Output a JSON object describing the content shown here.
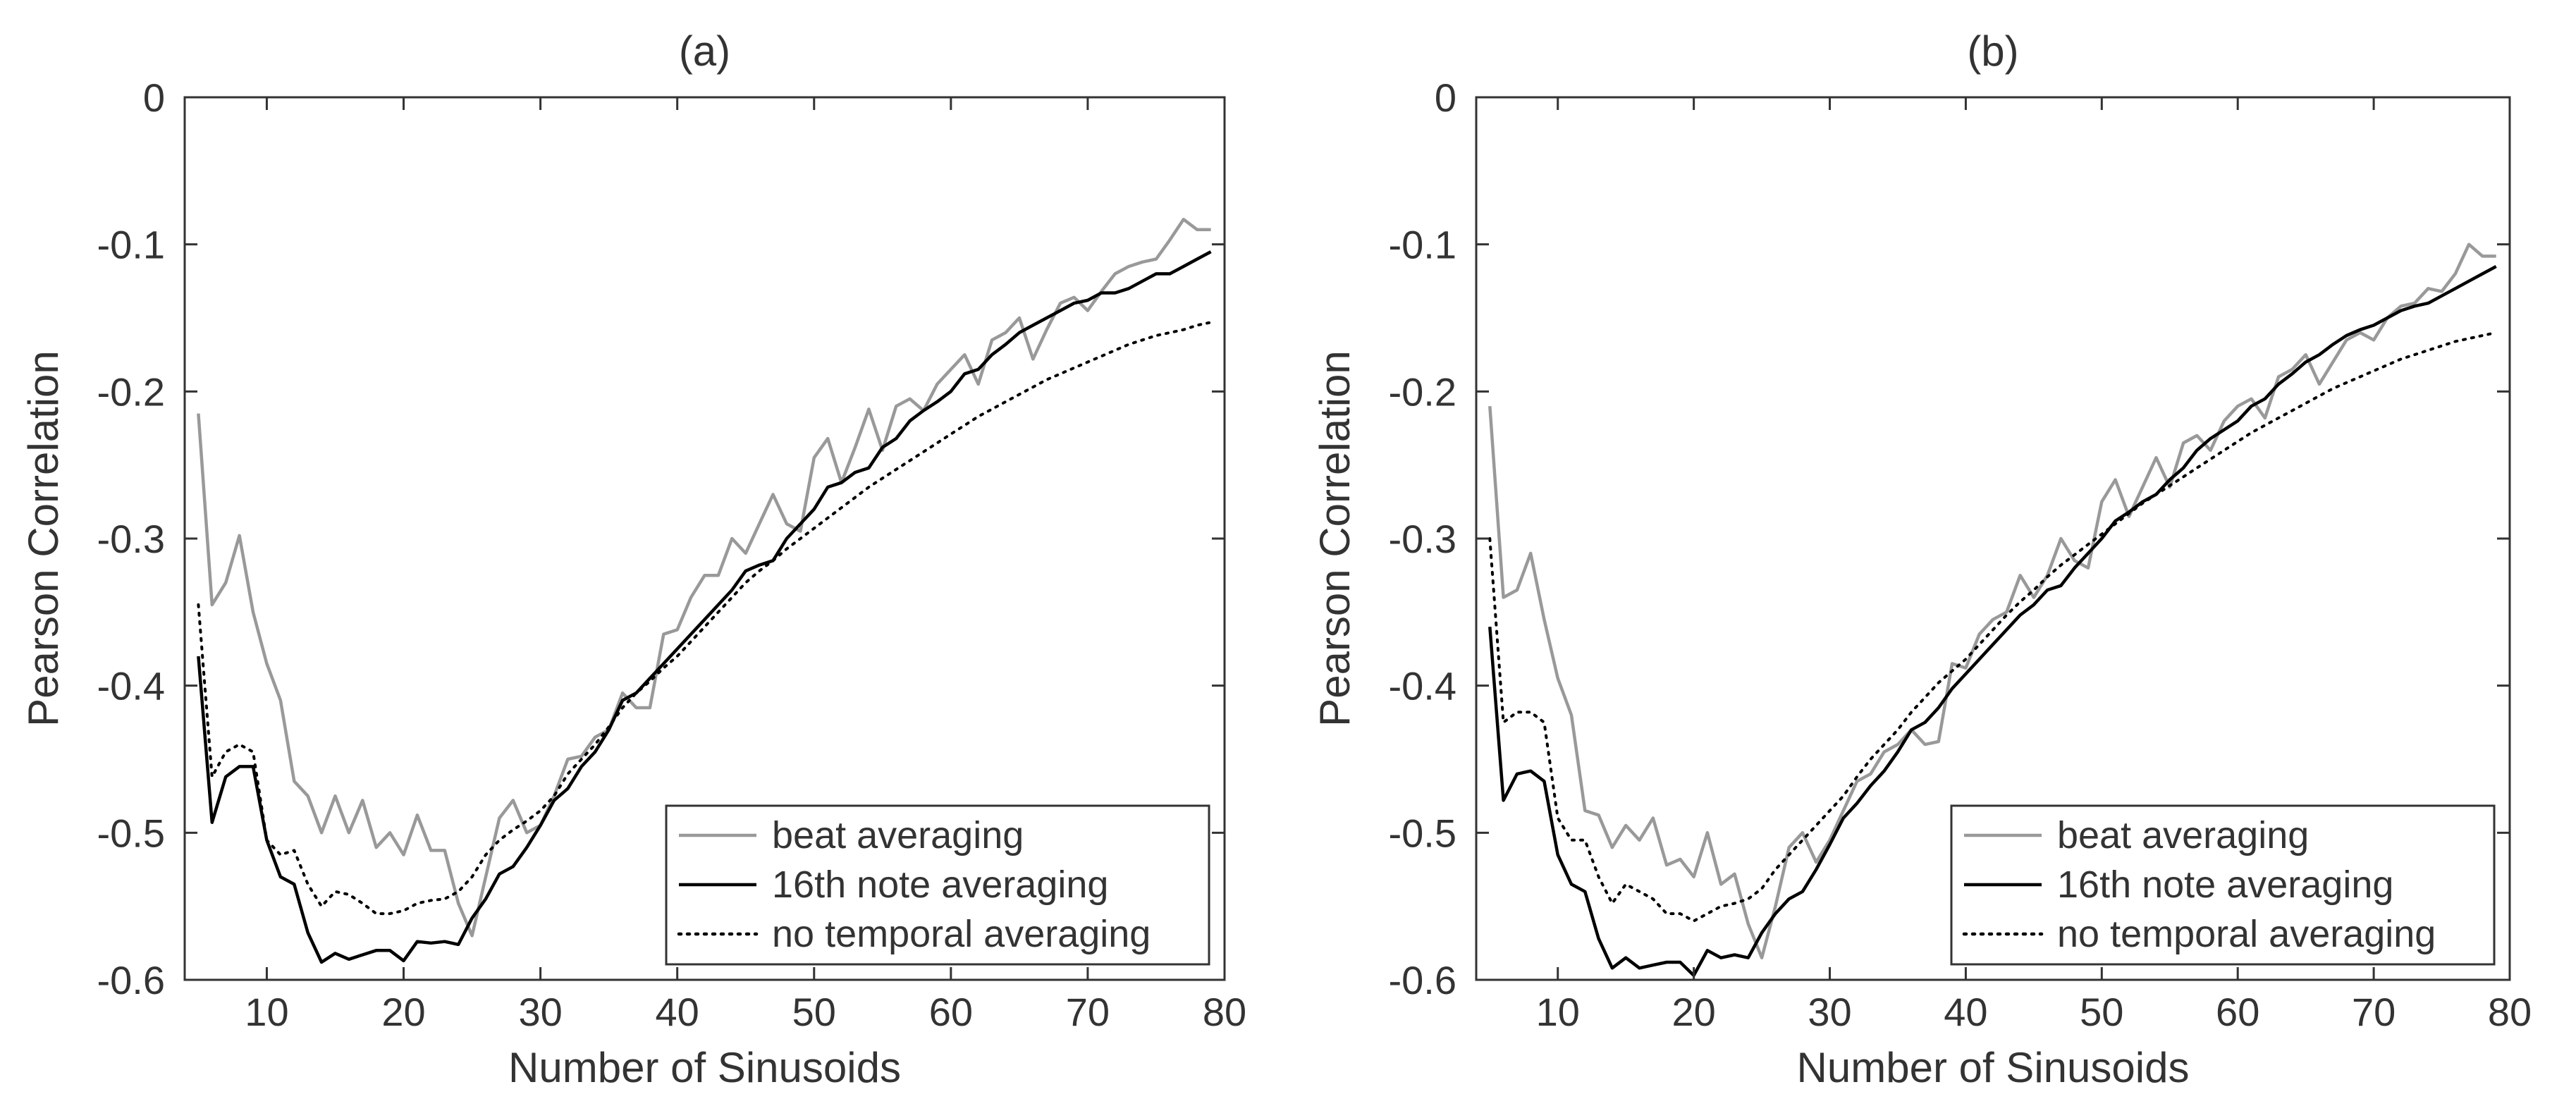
{
  "chart_data": [
    {
      "type": "line",
      "title": "(a)",
      "xlabel": "Number of Sinusoids",
      "ylabel": "Pearson Correlation",
      "xlim": [
        4,
        80
      ],
      "ylim": [
        -0.6,
        0
      ],
      "xticks": [
        10,
        20,
        30,
        40,
        50,
        60,
        70,
        80
      ],
      "xtick_labels": [
        "10",
        "20",
        "30",
        "40",
        "50",
        "60",
        "70",
        "80"
      ],
      "yticks": [
        0,
        -0.1,
        -0.2,
        -0.3,
        -0.4,
        -0.5,
        -0.6
      ],
      "ytick_labels": [
        "0",
        "-0.1",
        "-0.2",
        "-0.3",
        "-0.4",
        "-0.5",
        "-0.6"
      ],
      "grid": false,
      "legend_position": "bottom-right",
      "series": [
        {
          "name": "beat averaging",
          "color": "#999999",
          "style": "solid",
          "x": [
            5,
            6,
            7,
            8,
            9,
            10,
            11,
            12,
            13,
            14,
            15,
            16,
            17,
            18,
            19,
            20,
            21,
            22,
            23,
            24,
            25,
            26,
            27,
            28,
            29,
            30,
            31,
            32,
            33,
            34,
            35,
            36,
            37,
            38,
            39,
            40,
            41,
            42,
            43,
            44,
            45,
            46,
            47,
            48,
            49,
            50,
            51,
            52,
            53,
            54,
            55,
            56,
            57,
            58,
            59,
            60,
            61,
            62,
            63,
            64,
            65,
            66,
            67,
            68,
            69,
            70,
            71,
            72,
            73,
            74,
            75,
            76,
            77,
            78,
            79
          ],
          "values": [
            -0.215,
            -0.345,
            -0.33,
            -0.298,
            -0.35,
            -0.385,
            -0.41,
            -0.465,
            -0.475,
            -0.5,
            -0.475,
            -0.5,
            -0.478,
            -0.51,
            -0.5,
            -0.515,
            -0.488,
            -0.512,
            -0.512,
            -0.548,
            -0.57,
            -0.53,
            -0.49,
            -0.478,
            -0.5,
            -0.495,
            -0.475,
            -0.45,
            -0.448,
            -0.435,
            -0.43,
            -0.405,
            -0.415,
            -0.415,
            -0.365,
            -0.362,
            -0.34,
            -0.325,
            -0.325,
            -0.3,
            -0.31,
            -0.29,
            -0.27,
            -0.29,
            -0.295,
            -0.245,
            -0.232,
            -0.262,
            -0.238,
            -0.212,
            -0.24,
            -0.21,
            -0.205,
            -0.213,
            -0.195,
            -0.185,
            -0.175,
            -0.195,
            -0.165,
            -0.16,
            -0.15,
            -0.178,
            -0.158,
            -0.14,
            -0.136,
            -0.145,
            -0.132,
            -0.12,
            -0.115,
            -0.112,
            -0.11,
            -0.097,
            -0.083,
            -0.09,
            -0.09
          ]
        },
        {
          "name": "16th note averaging",
          "color": "#000000",
          "style": "solid",
          "x": [
            5,
            6,
            7,
            8,
            9,
            10,
            11,
            12,
            13,
            14,
            15,
            16,
            17,
            18,
            19,
            20,
            21,
            22,
            23,
            24,
            25,
            26,
            27,
            28,
            29,
            30,
            31,
            32,
            33,
            34,
            35,
            36,
            37,
            38,
            39,
            40,
            41,
            42,
            43,
            44,
            45,
            46,
            47,
            48,
            49,
            50,
            51,
            52,
            53,
            54,
            55,
            56,
            57,
            58,
            59,
            60,
            61,
            62,
            63,
            64,
            65,
            66,
            67,
            68,
            69,
            70,
            71,
            72,
            73,
            74,
            75,
            76,
            77,
            78,
            79
          ],
          "values": [
            -0.38,
            -0.493,
            -0.462,
            -0.455,
            -0.455,
            -0.505,
            -0.53,
            -0.535,
            -0.568,
            -0.588,
            -0.582,
            -0.586,
            -0.583,
            -0.58,
            -0.58,
            -0.587,
            -0.574,
            -0.575,
            -0.574,
            -0.576,
            -0.558,
            -0.545,
            -0.528,
            -0.523,
            -0.51,
            -0.495,
            -0.478,
            -0.47,
            -0.455,
            -0.445,
            -0.43,
            -0.41,
            -0.405,
            -0.395,
            -0.385,
            -0.375,
            -0.365,
            -0.355,
            -0.345,
            -0.335,
            -0.322,
            -0.318,
            -0.315,
            -0.3,
            -0.29,
            -0.28,
            -0.265,
            -0.262,
            -0.255,
            -0.252,
            -0.238,
            -0.232,
            -0.22,
            -0.213,
            -0.207,
            -0.2,
            -0.188,
            -0.185,
            -0.175,
            -0.168,
            -0.16,
            -0.155,
            -0.15,
            -0.145,
            -0.14,
            -0.138,
            -0.133,
            -0.133,
            -0.13,
            -0.125,
            -0.12,
            -0.12,
            -0.115,
            -0.11,
            -0.105
          ]
        },
        {
          "name": "no temporal averaging",
          "color": "#000000",
          "style": "dotted",
          "x": [
            5,
            6,
            7,
            8,
            9,
            10,
            11,
            12,
            13,
            14,
            15,
            16,
            17,
            18,
            19,
            20,
            21,
            22,
            23,
            24,
            25,
            26,
            27,
            28,
            29,
            30,
            31,
            32,
            33,
            34,
            35,
            36,
            37,
            38,
            39,
            40,
            41,
            42,
            43,
            44,
            45,
            46,
            47,
            48,
            49,
            50,
            51,
            52,
            53,
            54,
            55,
            56,
            57,
            58,
            59,
            60,
            61,
            62,
            63,
            64,
            65,
            66,
            67,
            68,
            69,
            70,
            71,
            72,
            73,
            74,
            75,
            76,
            77,
            78,
            79
          ],
          "values": [
            -0.345,
            -0.462,
            -0.445,
            -0.44,
            -0.445,
            -0.505,
            -0.515,
            -0.512,
            -0.535,
            -0.55,
            -0.54,
            -0.542,
            -0.548,
            -0.555,
            -0.555,
            -0.553,
            -0.548,
            -0.546,
            -0.545,
            -0.54,
            -0.53,
            -0.515,
            -0.505,
            -0.498,
            -0.492,
            -0.485,
            -0.475,
            -0.46,
            -0.45,
            -0.44,
            -0.428,
            -0.415,
            -0.405,
            -0.397,
            -0.388,
            -0.38,
            -0.37,
            -0.36,
            -0.35,
            -0.34,
            -0.33,
            -0.322,
            -0.315,
            -0.307,
            -0.3,
            -0.293,
            -0.286,
            -0.279,
            -0.272,
            -0.265,
            -0.259,
            -0.253,
            -0.247,
            -0.241,
            -0.235,
            -0.229,
            -0.223,
            -0.217,
            -0.212,
            -0.207,
            -0.202,
            -0.197,
            -0.192,
            -0.188,
            -0.184,
            -0.18,
            -0.176,
            -0.172,
            -0.168,
            -0.165,
            -0.162,
            -0.16,
            -0.158,
            -0.155,
            -0.153
          ]
        }
      ]
    },
    {
      "type": "line",
      "title": "(b)",
      "xlabel": "Number of Sinusoids",
      "ylabel": "Pearson Correlation",
      "xlim": [
        4,
        80
      ],
      "ylim": [
        -0.6,
        0
      ],
      "xticks": [
        10,
        20,
        30,
        40,
        50,
        60,
        70,
        80
      ],
      "xtick_labels": [
        "10",
        "20",
        "30",
        "40",
        "50",
        "60",
        "70",
        "80"
      ],
      "yticks": [
        0,
        -0.1,
        -0.2,
        -0.3,
        -0.4,
        -0.5,
        -0.6
      ],
      "ytick_labels": [
        "0",
        "-0.1",
        "-0.2",
        "-0.3",
        "-0.4",
        "-0.5",
        "-0.6"
      ],
      "grid": false,
      "legend_position": "bottom-right",
      "series": [
        {
          "name": "beat averaging",
          "color": "#999999",
          "style": "solid",
          "x": [
            5,
            6,
            7,
            8,
            9,
            10,
            11,
            12,
            13,
            14,
            15,
            16,
            17,
            18,
            19,
            20,
            21,
            22,
            23,
            24,
            25,
            26,
            27,
            28,
            29,
            30,
            31,
            32,
            33,
            34,
            35,
            36,
            37,
            38,
            39,
            40,
            41,
            42,
            43,
            44,
            45,
            46,
            47,
            48,
            49,
            50,
            51,
            52,
            53,
            54,
            55,
            56,
            57,
            58,
            59,
            60,
            61,
            62,
            63,
            64,
            65,
            66,
            67,
            68,
            69,
            70,
            71,
            72,
            73,
            74,
            75,
            76,
            77,
            78,
            79
          ],
          "values": [
            -0.21,
            -0.34,
            -0.335,
            -0.31,
            -0.355,
            -0.395,
            -0.42,
            -0.485,
            -0.488,
            -0.51,
            -0.495,
            -0.505,
            -0.49,
            -0.522,
            -0.518,
            -0.53,
            -0.5,
            -0.535,
            -0.528,
            -0.562,
            -0.585,
            -0.55,
            -0.51,
            -0.5,
            -0.52,
            -0.505,
            -0.485,
            -0.465,
            -0.46,
            -0.445,
            -0.44,
            -0.43,
            -0.44,
            -0.438,
            -0.385,
            -0.388,
            -0.365,
            -0.355,
            -0.35,
            -0.325,
            -0.34,
            -0.325,
            -0.3,
            -0.315,
            -0.32,
            -0.275,
            -0.26,
            -0.285,
            -0.265,
            -0.245,
            -0.265,
            -0.235,
            -0.23,
            -0.24,
            -0.22,
            -0.21,
            -0.205,
            -0.218,
            -0.19,
            -0.185,
            -0.175,
            -0.195,
            -0.18,
            -0.165,
            -0.16,
            -0.165,
            -0.15,
            -0.142,
            -0.14,
            -0.13,
            -0.132,
            -0.12,
            -0.1,
            -0.108,
            -0.108
          ]
        },
        {
          "name": "16th note averaging",
          "color": "#000000",
          "style": "solid",
          "x": [
            5,
            6,
            7,
            8,
            9,
            10,
            11,
            12,
            13,
            14,
            15,
            16,
            17,
            18,
            19,
            20,
            21,
            22,
            23,
            24,
            25,
            26,
            27,
            28,
            29,
            30,
            31,
            32,
            33,
            34,
            35,
            36,
            37,
            38,
            39,
            40,
            41,
            42,
            43,
            44,
            45,
            46,
            47,
            48,
            49,
            50,
            51,
            52,
            53,
            54,
            55,
            56,
            57,
            58,
            59,
            60,
            61,
            62,
            63,
            64,
            65,
            66,
            67,
            68,
            69,
            70,
            71,
            72,
            73,
            74,
            75,
            76,
            77,
            78,
            79
          ],
          "values": [
            -0.36,
            -0.478,
            -0.46,
            -0.458,
            -0.465,
            -0.515,
            -0.535,
            -0.54,
            -0.572,
            -0.592,
            -0.585,
            -0.592,
            -0.59,
            -0.588,
            -0.588,
            -0.597,
            -0.58,
            -0.585,
            -0.583,
            -0.585,
            -0.568,
            -0.555,
            -0.545,
            -0.54,
            -0.525,
            -0.508,
            -0.49,
            -0.48,
            -0.468,
            -0.458,
            -0.445,
            -0.43,
            -0.425,
            -0.415,
            -0.402,
            -0.392,
            -0.382,
            -0.372,
            -0.362,
            -0.352,
            -0.345,
            -0.335,
            -0.332,
            -0.32,
            -0.31,
            -0.3,
            -0.288,
            -0.282,
            -0.275,
            -0.27,
            -0.26,
            -0.252,
            -0.24,
            -0.232,
            -0.226,
            -0.22,
            -0.21,
            -0.205,
            -0.195,
            -0.188,
            -0.18,
            -0.175,
            -0.168,
            -0.162,
            -0.158,
            -0.155,
            -0.15,
            -0.145,
            -0.142,
            -0.14,
            -0.135,
            -0.13,
            -0.125,
            -0.12,
            -0.115
          ]
        },
        {
          "name": "no temporal averaging",
          "color": "#000000",
          "style": "dotted",
          "x": [
            5,
            6,
            7,
            8,
            9,
            10,
            11,
            12,
            13,
            14,
            15,
            16,
            17,
            18,
            19,
            20,
            21,
            22,
            23,
            24,
            25,
            26,
            27,
            28,
            29,
            30,
            31,
            32,
            33,
            34,
            35,
            36,
            37,
            38,
            39,
            40,
            41,
            42,
            43,
            44,
            45,
            46,
            47,
            48,
            49,
            50,
            51,
            52,
            53,
            54,
            55,
            56,
            57,
            58,
            59,
            60,
            61,
            62,
            63,
            64,
            65,
            66,
            67,
            68,
            69,
            70,
            71,
            72,
            73,
            74,
            75,
            76,
            77,
            78,
            79
          ],
          "values": [
            -0.3,
            -0.425,
            -0.418,
            -0.418,
            -0.425,
            -0.49,
            -0.505,
            -0.505,
            -0.53,
            -0.548,
            -0.535,
            -0.54,
            -0.545,
            -0.555,
            -0.555,
            -0.56,
            -0.555,
            -0.55,
            -0.548,
            -0.545,
            -0.538,
            -0.525,
            -0.515,
            -0.505,
            -0.495,
            -0.485,
            -0.475,
            -0.462,
            -0.45,
            -0.44,
            -0.43,
            -0.418,
            -0.408,
            -0.398,
            -0.39,
            -0.382,
            -0.372,
            -0.362,
            -0.352,
            -0.343,
            -0.335,
            -0.326,
            -0.318,
            -0.311,
            -0.304,
            -0.297,
            -0.29,
            -0.283,
            -0.276,
            -0.27,
            -0.264,
            -0.258,
            -0.252,
            -0.246,
            -0.24,
            -0.234,
            -0.228,
            -0.223,
            -0.218,
            -0.213,
            -0.208,
            -0.203,
            -0.198,
            -0.194,
            -0.19,
            -0.186,
            -0.182,
            -0.178,
            -0.175,
            -0.172,
            -0.169,
            -0.166,
            -0.164,
            -0.162,
            -0.16
          ]
        }
      ]
    }
  ]
}
